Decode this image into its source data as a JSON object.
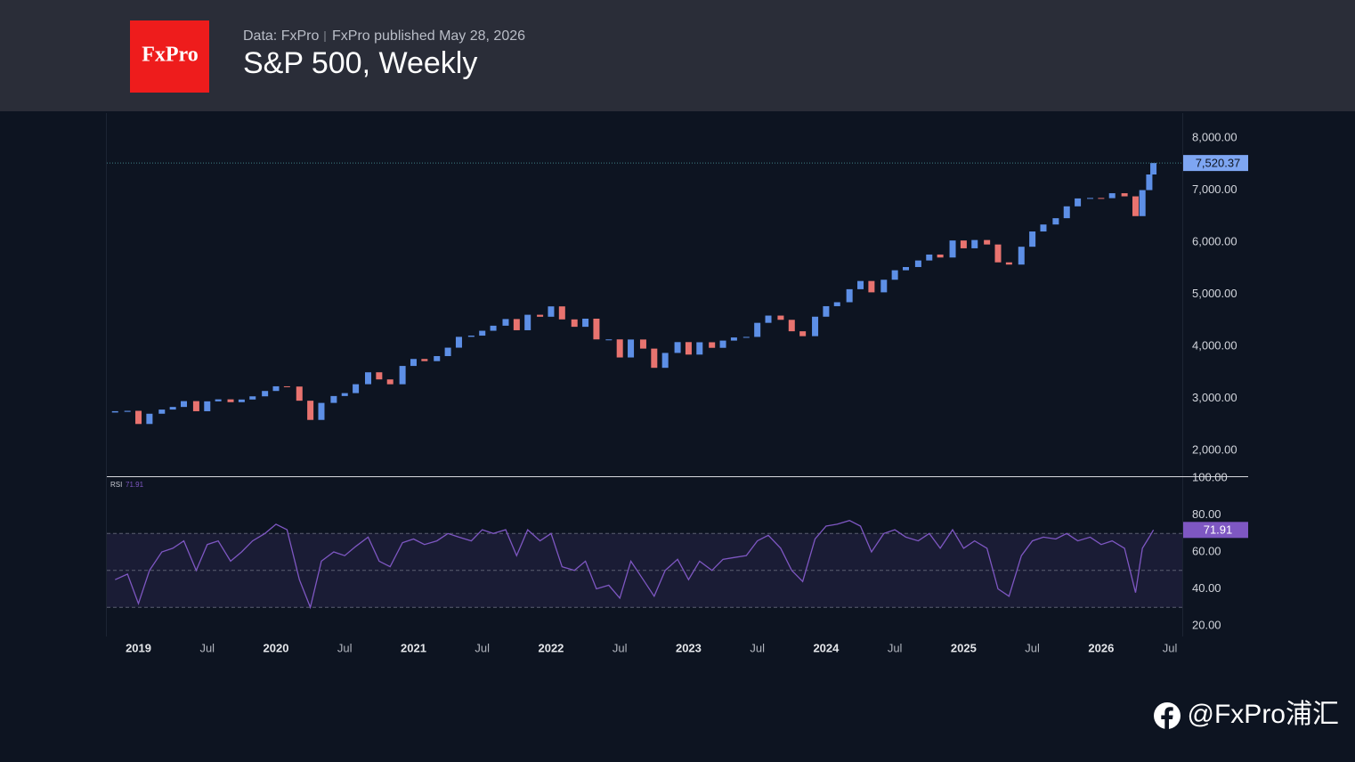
{
  "logo": "FxPro",
  "watermark": "@FxPro浦汇",
  "chart_data": [
    {
      "type": "candlestick",
      "title": "S&P 500, Weekly",
      "source": "Data: FxPro",
      "subtitle": "FxPro published May 28, 2026",
      "x": [
        2018.83,
        2018.92,
        2019.0,
        2019.08,
        2019.17,
        2019.25,
        2019.33,
        2019.42,
        2019.5,
        2019.58,
        2019.67,
        2019.75,
        2019.83,
        2019.92,
        2020.0,
        2020.08,
        2020.17,
        2020.25,
        2020.33,
        2020.42,
        2020.5,
        2020.58,
        2020.67,
        2020.75,
        2020.83,
        2020.92,
        2021.0,
        2021.08,
        2021.17,
        2021.25,
        2021.33,
        2021.42,
        2021.5,
        2021.58,
        2021.67,
        2021.75,
        2021.83,
        2021.92,
        2022.0,
        2022.08,
        2022.17,
        2022.25,
        2022.33,
        2022.42,
        2022.5,
        2022.58,
        2022.67,
        2022.75,
        2022.83,
        2022.92,
        2023.0,
        2023.08,
        2023.17,
        2023.25,
        2023.33,
        2023.42,
        2023.5,
        2023.58,
        2023.67,
        2023.75,
        2023.83,
        2023.92,
        2024.0,
        2024.08,
        2024.17,
        2024.25,
        2024.33,
        2024.42,
        2024.5,
        2024.58,
        2024.67,
        2024.75,
        2024.83,
        2024.92,
        2025.0,
        2025.08,
        2025.17,
        2025.25,
        2025.33,
        2025.42,
        2025.5,
        2025.58,
        2025.67,
        2025.75,
        2025.83,
        2025.92,
        2026.0,
        2026.08,
        2026.17,
        2026.25,
        2026.3,
        2026.35,
        2026.38
      ],
      "values": [
        2740,
        2760,
        2507,
        2704,
        2784,
        2834,
        2946,
        2752,
        2942,
        2980,
        2926,
        2977,
        3038,
        3141,
        3231,
        3226,
        2954,
        2585,
        2912,
        3044,
        3100,
        3271,
        3500,
        3363,
        3270,
        3622,
        3756,
        3714,
        3811,
        3973,
        4181,
        4204,
        4298,
        4395,
        4523,
        4308,
        4605,
        4567,
        4766,
        4516,
        4374,
        4530,
        4132,
        4132,
        3785,
        4130,
        3955,
        3586,
        3872,
        4080,
        3840,
        4077,
        3970,
        4109,
        4169,
        4180,
        4450,
        4589,
        4508,
        4288,
        4194,
        4568,
        4770,
        4846,
        5096,
        5254,
        5036,
        5278,
        5460,
        5522,
        5648,
        5762,
        5705,
        6032,
        5882,
        6041,
        5955,
        5612,
        5569,
        5912,
        6205,
        6339,
        6460,
        6688,
        6840,
        6849,
        6845,
        6940,
        6880,
        6500,
        7000,
        7300,
        7520.37
      ],
      "up_color": "#5d8fe6",
      "down_color": "#e8736f",
      "xlim": [
        2018.77,
        2026.59
      ],
      "ylim": [
        1520,
        8480
      ],
      "yticks": [
        {
          "value": 2000,
          "label": "2,000.00"
        },
        {
          "value": 3000,
          "label": "3,000.00"
        },
        {
          "value": 4000,
          "label": "4,000.00"
        },
        {
          "value": 5000,
          "label": "5,000.00"
        },
        {
          "value": 6000,
          "label": "6,000.00"
        },
        {
          "value": 7000,
          "label": "7,000.00"
        },
        {
          "value": 8000,
          "label": "8,000.00"
        }
      ],
      "price_line": {
        "value": 7520.37,
        "label": "7,520.37"
      },
      "grid": false
    },
    {
      "type": "line",
      "x": [
        2018.83,
        2018.92,
        2019.0,
        2019.08,
        2019.17,
        2019.25,
        2019.33,
        2019.42,
        2019.5,
        2019.58,
        2019.67,
        2019.75,
        2019.83,
        2019.92,
        2020.0,
        2020.08,
        2020.17,
        2020.25,
        2020.33,
        2020.42,
        2020.5,
        2020.58,
        2020.67,
        2020.75,
        2020.83,
        2020.92,
        2021.0,
        2021.08,
        2021.17,
        2021.25,
        2021.33,
        2021.42,
        2021.5,
        2021.58,
        2021.67,
        2021.75,
        2021.83,
        2021.92,
        2022.0,
        2022.08,
        2022.17,
        2022.25,
        2022.33,
        2022.42,
        2022.5,
        2022.58,
        2022.67,
        2022.75,
        2022.83,
        2022.92,
        2023.0,
        2023.08,
        2023.17,
        2023.25,
        2023.33,
        2023.42,
        2023.5,
        2023.58,
        2023.67,
        2023.75,
        2023.83,
        2023.92,
        2024.0,
        2024.08,
        2024.17,
        2024.25,
        2024.33,
        2024.42,
        2024.5,
        2024.58,
        2024.67,
        2024.75,
        2024.83,
        2024.92,
        2025.0,
        2025.08,
        2025.17,
        2025.25,
        2025.33,
        2025.42,
        2025.5,
        2025.58,
        2025.67,
        2025.75,
        2025.83,
        2025.92,
        2026.0,
        2026.08,
        2026.17,
        2026.25,
        2026.3,
        2026.35,
        2026.38
      ],
      "series": [
        {
          "name": "RSI",
          "color": "#7e57c2",
          "values": [
            45,
            48,
            32,
            50,
            60,
            62,
            66,
            50,
            64,
            66,
            55,
            60,
            66,
            70,
            75,
            72,
            45,
            30,
            55,
            60,
            58,
            63,
            68,
            55,
            52,
            65,
            67,
            64,
            66,
            70,
            68,
            66,
            72,
            70,
            72,
            58,
            72,
            66,
            70,
            52,
            50,
            55,
            40,
            42,
            35,
            55,
            45,
            36,
            50,
            56,
            45,
            55,
            50,
            56,
            57,
            58,
            66,
            69,
            62,
            50,
            44,
            67,
            74,
            75,
            77,
            74,
            60,
            70,
            72,
            68,
            66,
            70,
            62,
            72,
            62,
            66,
            62,
            40,
            36,
            58,
            66,
            68,
            67,
            70,
            66,
            68,
            64,
            66,
            62,
            38,
            62,
            68,
            71.91
          ]
        }
      ],
      "xlim": [
        2018.77,
        2026.59
      ],
      "ylim": [
        14,
        100
      ],
      "yticks": [
        {
          "value": 20,
          "label": "20.00"
        },
        {
          "value": 40,
          "label": "40.00"
        },
        {
          "value": 60,
          "label": "60.00"
        },
        {
          "value": 80,
          "label": "80.00"
        },
        {
          "value": 100,
          "label": "100.00"
        }
      ],
      "xticks": [
        {
          "value": 2019,
          "label": "2019"
        },
        {
          "value": 2019.5,
          "label": "Jul"
        },
        {
          "value": 2020,
          "label": "2020"
        },
        {
          "value": 2020.5,
          "label": "Jul"
        },
        {
          "value": 2021,
          "label": "2021"
        },
        {
          "value": 2021.5,
          "label": "Jul"
        },
        {
          "value": 2022,
          "label": "2022"
        },
        {
          "value": 2022.5,
          "label": "Jul"
        },
        {
          "value": 2023,
          "label": "2023"
        },
        {
          "value": 2023.5,
          "label": "Jul"
        },
        {
          "value": 2024,
          "label": "2024"
        },
        {
          "value": 2024.5,
          "label": "Jul"
        },
        {
          "value": 2025,
          "label": "2025"
        },
        {
          "value": 2025.5,
          "label": "Jul"
        },
        {
          "value": 2026,
          "label": "2026"
        },
        {
          "value": 2026.5,
          "label": "Jul"
        }
      ],
      "levels": [
        30,
        50,
        70
      ],
      "band": [
        30,
        70
      ],
      "price_line": {
        "value": 71.91,
        "label": "71.91"
      },
      "grid": false
    }
  ]
}
